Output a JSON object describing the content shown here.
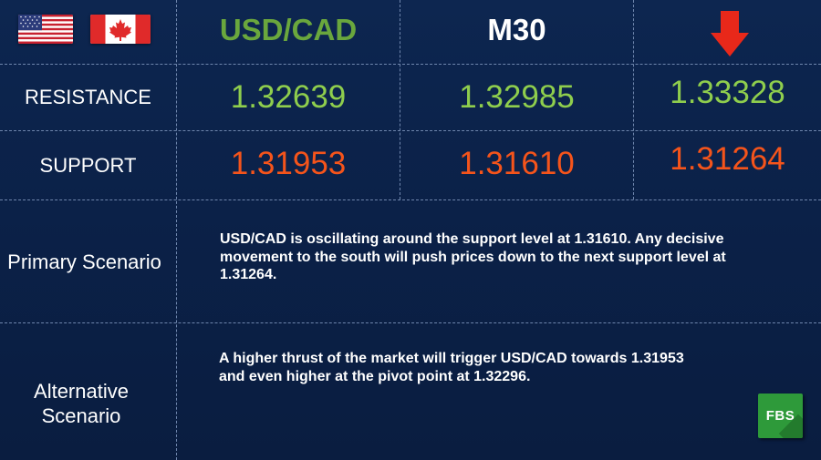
{
  "header": {
    "pair": "USD/CAD",
    "timeframe": "M30",
    "direction_icon": "arrow-down-icon",
    "flags": [
      "us-flag-icon",
      "canada-flag-icon"
    ]
  },
  "levels": {
    "resistance_label": "RESISTANCE",
    "support_label": "SUPPORT",
    "resistance": [
      "1.32639",
      "1.32985",
      "1.33328"
    ],
    "support": [
      "1.31953",
      "1.31610",
      "1.31264"
    ]
  },
  "scenarios": {
    "primary_label": "Primary Scenario",
    "primary_text": "USD/CAD is oscillating around the support level at 1.31610. Any decisive movement to the south will push prices down to the next support level at 1.31264.",
    "alternative_label_line1": "Alternative",
    "alternative_label_line2": "Scenario",
    "alternative_text_line1": "A higher thrust of the market will trigger USD/CAD towards 1.31953",
    "alternative_text_line2": "and even higher at the pivot point at 1.32296."
  },
  "logo": {
    "text": "FBS"
  },
  "colors": {
    "background": "#0b2148",
    "pair": "#6aa73d",
    "resistance": "#8fce4d",
    "support": "#f5541b",
    "arrow": "#e8281a",
    "logo": "#2e9a3a"
  }
}
